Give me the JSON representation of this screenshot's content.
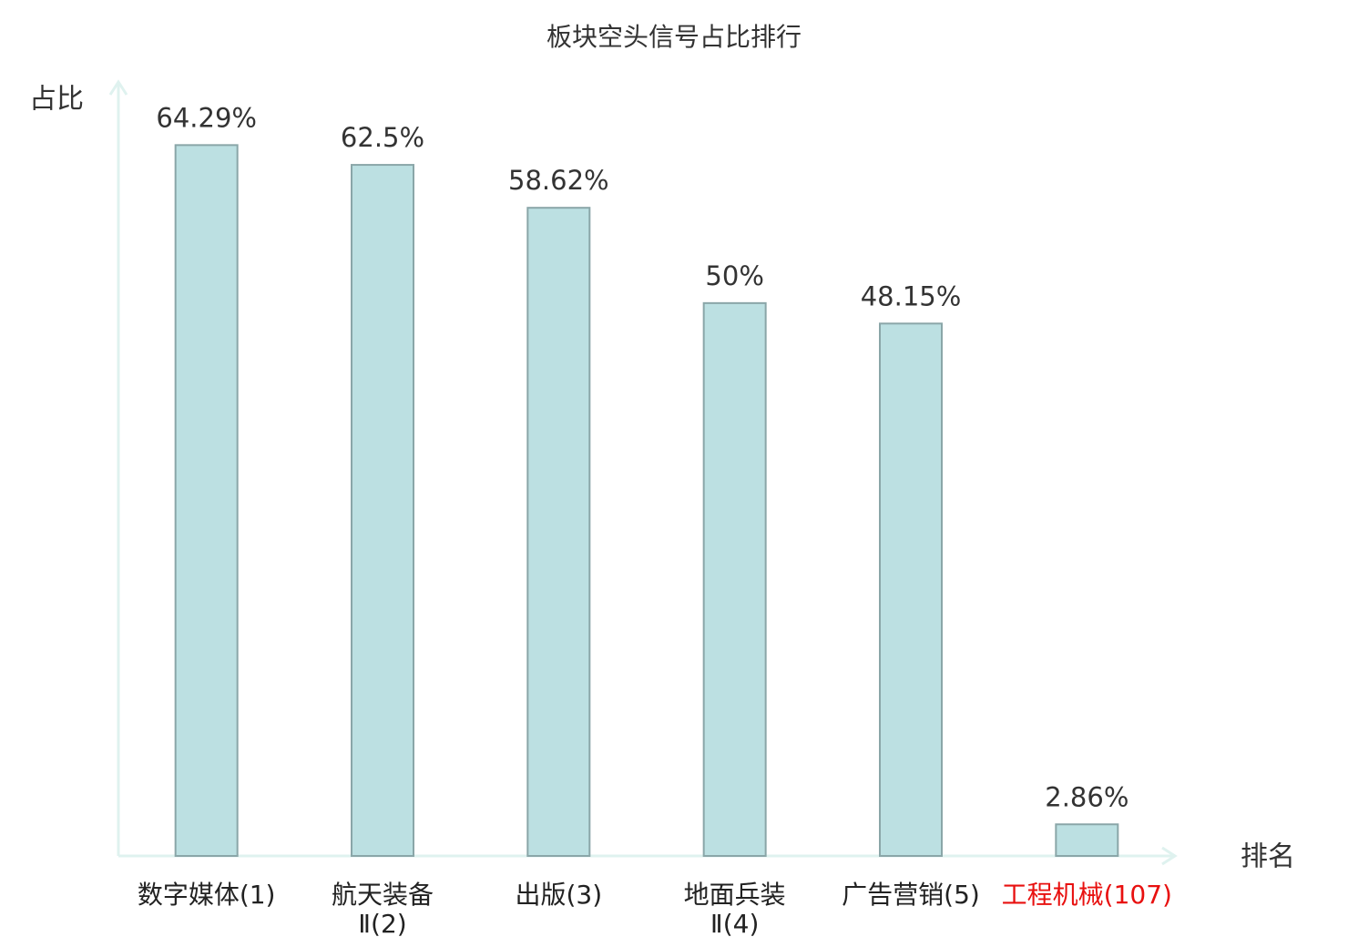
{
  "chart_data": {
    "type": "bar",
    "title": "板块空头信号占比排行",
    "y_label": "占比",
    "x_label": "排名",
    "categories": [
      "数字媒体(1)",
      "航天装备\nⅡ(2)",
      "出版(3)",
      "地面兵装\nⅡ(4)",
      "广告营销(5)",
      "工程机械(107)"
    ],
    "category_colors": [
      "#222222",
      "#222222",
      "#222222",
      "#222222",
      "#222222",
      "#e8100f"
    ],
    "values": [
      64.29,
      62.5,
      58.62,
      50,
      48.15,
      2.86
    ],
    "value_labels": [
      "64.29%",
      "62.5%",
      "58.62%",
      "50%",
      "48.15%",
      "2.86%"
    ],
    "color": "#bce0e2",
    "edge_color": "#8aa6a8",
    "axis_color": "#dff2ef",
    "ylim": [
      0,
      70
    ]
  }
}
